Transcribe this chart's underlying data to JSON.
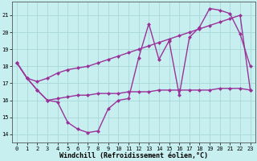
{
  "xlabel": "Windchill (Refroidissement éolien,°C)",
  "xlim": [
    -0.5,
    23.5
  ],
  "ylim": [
    13.5,
    21.8
  ],
  "yticks": [
    14,
    15,
    16,
    17,
    18,
    19,
    20,
    21
  ],
  "xticks": [
    0,
    1,
    2,
    3,
    4,
    5,
    6,
    7,
    8,
    9,
    10,
    11,
    12,
    13,
    14,
    15,
    16,
    17,
    18,
    19,
    20,
    21,
    22,
    23
  ],
  "bg_color": "#c8efef",
  "grid_color": "#a8d8d8",
  "line_color": "#993399",
  "line1_y": [
    18.2,
    17.3,
    16.6,
    16.0,
    15.9,
    14.7,
    14.3,
    14.1,
    14.2,
    15.5,
    16.0,
    16.1,
    18.5,
    20.5,
    18.4,
    19.5,
    16.3,
    19.7,
    20.3,
    21.4,
    21.3,
    21.1,
    19.9,
    18.0
  ],
  "line2_y": [
    18.2,
    17.3,
    16.6,
    16.0,
    16.1,
    16.2,
    16.3,
    16.3,
    16.4,
    16.4,
    16.4,
    16.5,
    16.5,
    16.5,
    16.6,
    16.6,
    16.6,
    16.6,
    16.6,
    16.6,
    16.7,
    16.7,
    16.7,
    16.6
  ],
  "line3_y": [
    18.2,
    17.3,
    17.1,
    17.3,
    17.6,
    17.8,
    17.9,
    18.0,
    18.2,
    18.4,
    18.6,
    18.8,
    19.0,
    19.2,
    19.4,
    19.6,
    19.8,
    20.0,
    20.2,
    20.4,
    20.6,
    20.8,
    21.0,
    16.6
  ],
  "marker_size": 2.5,
  "linewidth": 1.0,
  "tick_fontsize": 5.0,
  "xlabel_fontsize": 6.0
}
